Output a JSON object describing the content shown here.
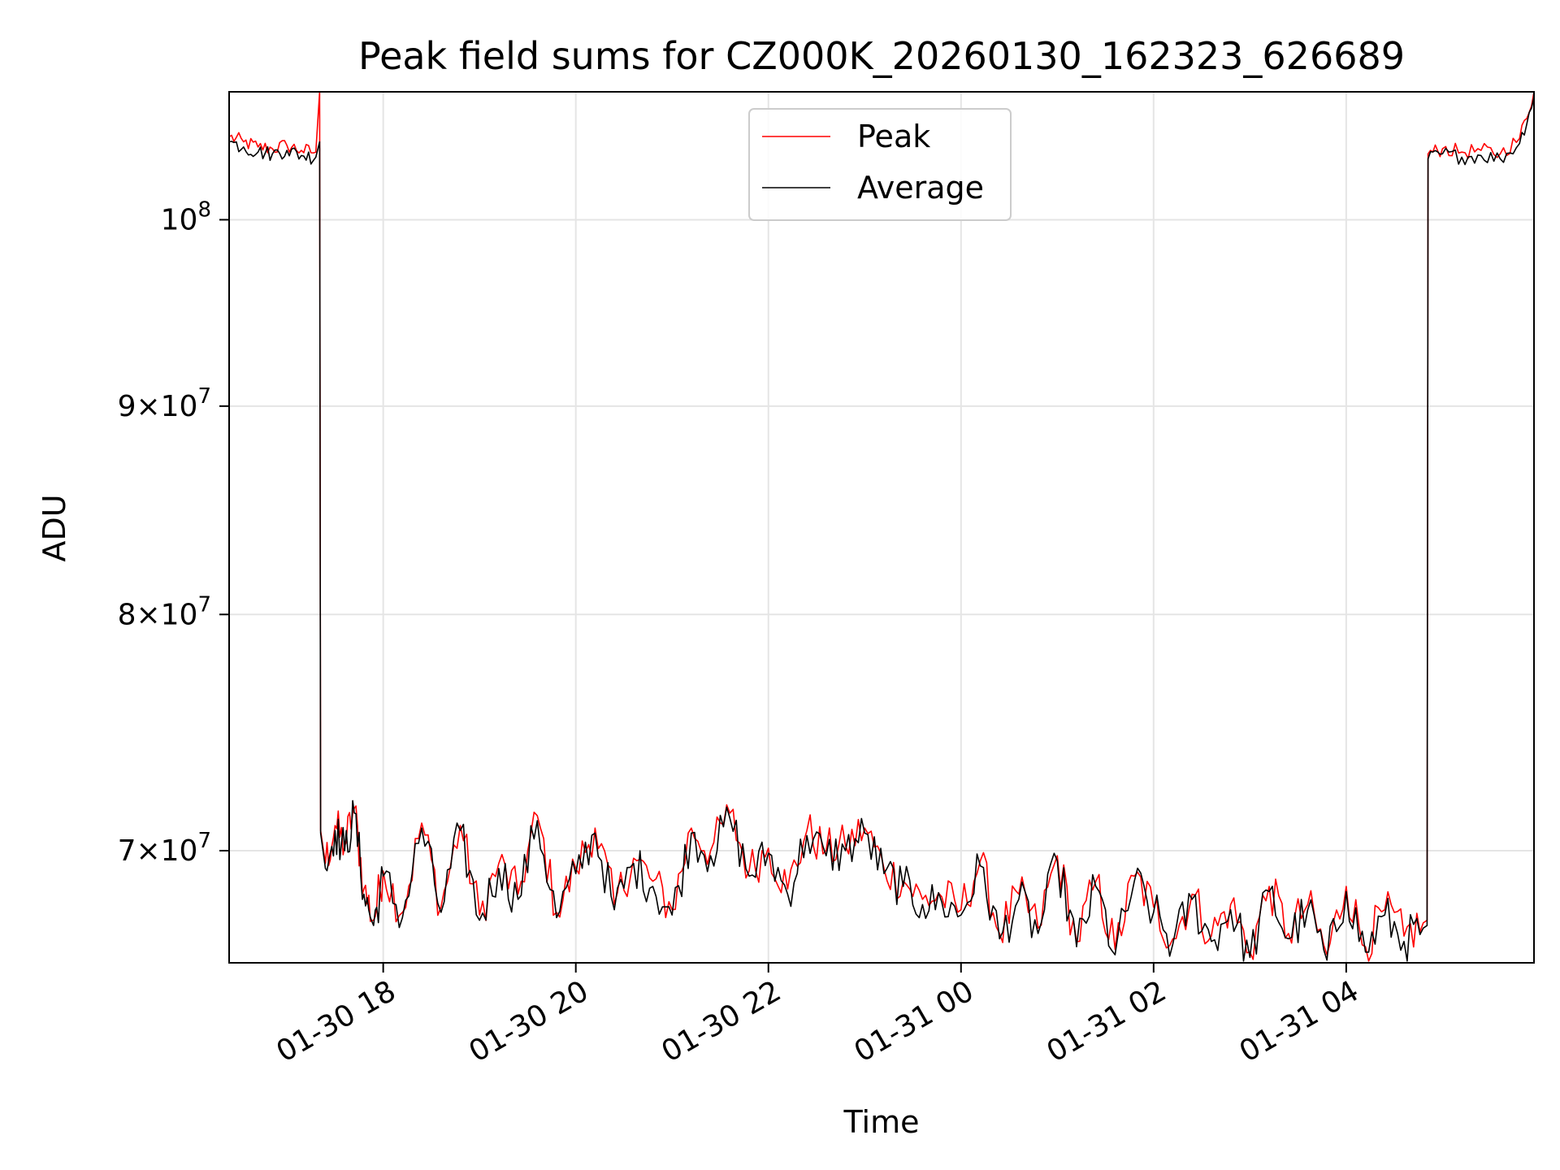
{
  "chart_data": {
    "type": "line",
    "title": "Peak field sums for CZ000K_20260130_162323_626689",
    "xlabel": "Time",
    "ylabel": "ADU",
    "yscale": "log",
    "ylim": [
      65700000,
      107500000
    ],
    "xlim_hours": [
      16.4,
      29.95
    ],
    "grid": true,
    "legend_position": "top-center",
    "x_ticks": [
      {
        "hour": 18,
        "label": "01-30 18"
      },
      {
        "hour": 20,
        "label": "01-30 20"
      },
      {
        "hour": 22,
        "label": "01-30 22"
      },
      {
        "hour": 24,
        "label": "01-31 00"
      },
      {
        "hour": 26,
        "label": "01-31 02"
      },
      {
        "hour": 28,
        "label": "01-31 04"
      }
    ],
    "y_ticks": [
      {
        "value": 70000000,
        "mantissa": "7",
        "exponent": "7"
      },
      {
        "value": 80000000,
        "mantissa": "8",
        "exponent": "7"
      },
      {
        "value": 90000000,
        "mantissa": "9",
        "exponent": "7"
      },
      {
        "value": 100000000,
        "base": "10",
        "exponent": "8"
      }
    ],
    "times_label": "x values in hours since 2026-01-30 00:00",
    "series": [
      {
        "name": "Peak",
        "color": "#ff0000",
        "x": [
          16.4,
          16.55,
          16.7,
          16.85,
          17.0,
          17.15,
          17.3,
          17.34,
          17.35,
          17.4,
          17.5,
          17.6,
          17.7,
          17.8,
          17.9,
          18.0,
          18.2,
          18.4,
          18.6,
          18.8,
          19.0,
          19.2,
          19.4,
          19.6,
          19.8,
          20.0,
          20.2,
          20.4,
          20.6,
          20.8,
          21.0,
          21.2,
          21.4,
          21.6,
          21.8,
          22.0,
          22.2,
          22.4,
          22.6,
          22.8,
          23.0,
          23.2,
          23.4,
          23.6,
          23.8,
          24.0,
          24.2,
          24.4,
          24.6,
          24.8,
          25.0,
          25.2,
          25.4,
          25.6,
          25.8,
          26.0,
          26.2,
          26.4,
          26.6,
          26.8,
          27.0,
          27.2,
          27.4,
          27.6,
          27.8,
          28.0,
          28.2,
          28.4,
          28.6,
          28.8,
          28.84,
          28.85,
          29.0,
          29.2,
          29.4,
          29.6,
          29.8,
          29.95
        ],
        "values": [
          104800000,
          104500000,
          104200000,
          104100000,
          104300000,
          104000000,
          103900000,
          107500000,
          70800000,
          69500000,
          71000000,
          70200000,
          71700000,
          68500000,
          67300000,
          69200000,
          67600000,
          71100000,
          67800000,
          71000000,
          67500000,
          69500000,
          68300000,
          71400000,
          67600000,
          69300000,
          70900000,
          67900000,
          69700000,
          68800000,
          67700000,
          70900000,
          70000000,
          71500000,
          69200000,
          70100000,
          68500000,
          70800000,
          70000000,
          70200000,
          70900000,
          69300000,
          68800000,
          68100000,
          68200000,
          67700000,
          69600000,
          66800000,
          68300000,
          67000000,
          69800000,
          66500000,
          68800000,
          66200000,
          69000000,
          67800000,
          66600000,
          68300000,
          66700000,
          67900000,
          66100000,
          68600000,
          66800000,
          67900000,
          66000000,
          68600000,
          66300000,
          67700000,
          66700000,
          67200000,
          67300000,
          103800000,
          104100000,
          103900000,
          104000000,
          103800000,
          104700000,
          107500000
        ]
      },
      {
        "name": "Average",
        "color": "#000000",
        "x": [
          16.4,
          16.55,
          16.7,
          16.85,
          17.0,
          17.15,
          17.3,
          17.34,
          17.35,
          17.4,
          17.5,
          17.6,
          17.7,
          17.8,
          17.9,
          18.0,
          18.2,
          18.4,
          18.6,
          18.8,
          19.0,
          19.2,
          19.4,
          19.6,
          19.8,
          20.0,
          20.2,
          20.4,
          20.6,
          20.8,
          21.0,
          21.2,
          21.4,
          21.6,
          21.8,
          22.0,
          22.2,
          22.4,
          22.6,
          22.8,
          23.0,
          23.2,
          23.4,
          23.6,
          23.8,
          24.0,
          24.2,
          24.4,
          24.6,
          24.8,
          25.0,
          25.2,
          25.4,
          25.6,
          25.8,
          26.0,
          26.2,
          26.4,
          26.6,
          26.8,
          27.0,
          27.2,
          27.4,
          27.6,
          27.8,
          28.0,
          28.2,
          28.4,
          28.6,
          28.8,
          28.84,
          28.85,
          29.0,
          29.2,
          29.4,
          29.6,
          29.8,
          29.95
        ],
        "values": [
          104500000,
          104200000,
          103900000,
          103800000,
          104000000,
          103700000,
          103600000,
          104500000,
          70700000,
          69300000,
          70800000,
          70000000,
          71500000,
          68300000,
          67100000,
          69000000,
          67400000,
          70900000,
          67600000,
          70800000,
          67300000,
          69300000,
          68100000,
          71200000,
          67400000,
          69100000,
          70700000,
          67700000,
          69500000,
          68600000,
          67500000,
          70700000,
          69800000,
          71300000,
          69000000,
          69900000,
          68300000,
          70600000,
          69800000,
          70000000,
          70700000,
          69100000,
          68600000,
          67900000,
          68000000,
          67500000,
          69400000,
          66600000,
          68100000,
          66800000,
          69600000,
          66300000,
          68600000,
          66000000,
          68800000,
          67600000,
          66400000,
          68100000,
          66500000,
          67700000,
          65900000,
          68400000,
          66600000,
          67700000,
          65800000,
          68400000,
          66100000,
          67500000,
          66500000,
          67000000,
          67100000,
          103500000,
          103800000,
          103600000,
          103700000,
          103500000,
          104400000,
          107200000
        ]
      }
    ]
  }
}
